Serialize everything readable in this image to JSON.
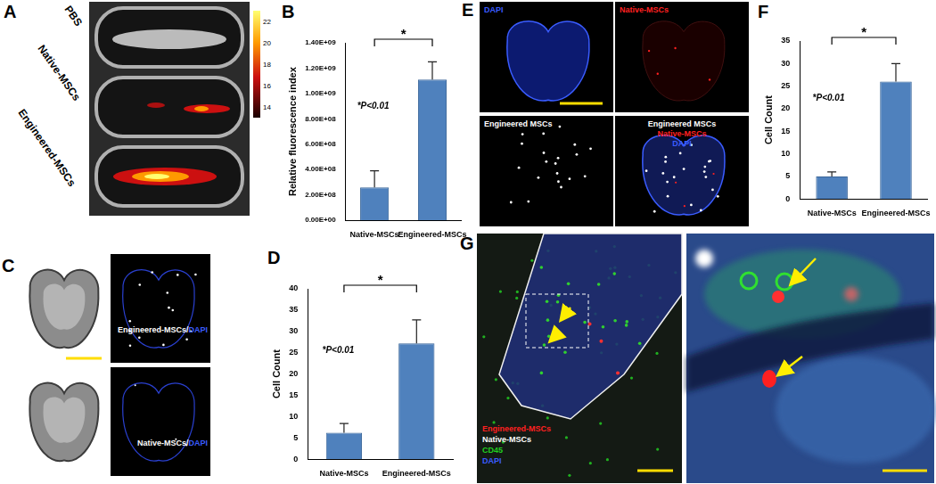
{
  "chart_data": [
    {
      "panel_label": "B",
      "type": "bar",
      "y_label": "Relative fluorescence index",
      "categories": [
        "Native-MSCs",
        "Engineered-MSCs"
      ],
      "values": [
        260000000,
        1110000000
      ],
      "errors": [
        130000000,
        140000000
      ],
      "color": "#4f81bd",
      "grid": false,
      "ylim": [
        0,
        1400000000
      ],
      "yticks": [
        {
          "value": 0,
          "label": "0.00E+00"
        },
        {
          "value": 200000000,
          "label": "2.00E+08"
        },
        {
          "value": 400000000,
          "label": "4.00E+08"
        },
        {
          "value": 600000000,
          "label": "6.00E+08"
        },
        {
          "value": 800000000,
          "label": "8.00E+08"
        },
        {
          "value": 1000000000,
          "label": "1.00E+09"
        },
        {
          "value": 1200000000,
          "label": "1.20E+09"
        },
        {
          "value": 1400000000,
          "label": "1.40E+09"
        }
      ],
      "annotations": [
        "*P<0.01"
      ],
      "bracket_label": "*"
    },
    {
      "panel_label": "D",
      "type": "bar",
      "y_label": "Cell Count",
      "categories": [
        "Native-MSCs",
        "Engineered-MSCs"
      ],
      "values": [
        6.2,
        27.2
      ],
      "errors": [
        2.2,
        5.5
      ],
      "color": "#4f81bd",
      "grid": false,
      "ylim": [
        0,
        40
      ],
      "yticks": [
        0,
        5,
        10,
        15,
        20,
        25,
        30,
        35,
        40
      ],
      "annotations": [
        "*P<0.01"
      ],
      "bracket_label": "*"
    },
    {
      "panel_label": "F",
      "type": "bar",
      "y_label": "Cell Count",
      "categories": [
        "Native-MSCs",
        "Engineered-MSCs"
      ],
      "values": [
        5,
        26
      ],
      "errors": [
        1,
        4
      ],
      "color": "#4f81bd",
      "grid": false,
      "ylim": [
        0,
        35
      ],
      "yticks": [
        0,
        5,
        10,
        15,
        20,
        25,
        30,
        35
      ],
      "annotations": [
        "*P<0.01"
      ],
      "bracket_label": "*"
    }
  ],
  "image_panels": {
    "A": {
      "label": "A",
      "well_labels": [
        "PBS",
        "Native-MSCs",
        "Engineered-MSCs"
      ],
      "colorbar": {
        "range": [
          13,
          23
        ],
        "ticks": [
          22,
          20,
          18,
          16,
          14
        ]
      }
    },
    "C": {
      "label": "C",
      "captions": [
        [
          {
            "text": "Engineered-MSCs/",
            "color": "#ffffff"
          },
          {
            "text": "DAPI",
            "color": "#3a5cff"
          }
        ],
        [
          {
            "text": "Native-MSCs/",
            "color": "#ffffff"
          },
          {
            "text": "DAPI",
            "color": "#3a5cff"
          }
        ]
      ]
    },
    "E": {
      "label": "E",
      "tiles": [
        [
          {
            "text": "DAPI",
            "color": "#3a5cff"
          }
        ],
        [
          {
            "text": "Native-MSCs",
            "color": "#ff2020"
          }
        ],
        [
          {
            "text": "Engineered MSCs",
            "color": "#ffffff"
          }
        ],
        [
          {
            "text": "Engineered MSCs",
            "color": "#ffffff"
          },
          {
            "text": "Native-MSCs",
            "color": "#ff2020"
          },
          {
            "text": "DAPI",
            "color": "#3a5cff"
          }
        ]
      ]
    },
    "G": {
      "label": "G",
      "legend": [
        {
          "text": "Engineered-MSCs",
          "color": "#ff2020"
        },
        {
          "text": "Native-MSCs",
          "color": "#ffffff"
        },
        {
          "text": "CD45",
          "color": "#20d020"
        },
        {
          "text": "DAPI",
          "color": "#3a5cff"
        }
      ]
    }
  }
}
